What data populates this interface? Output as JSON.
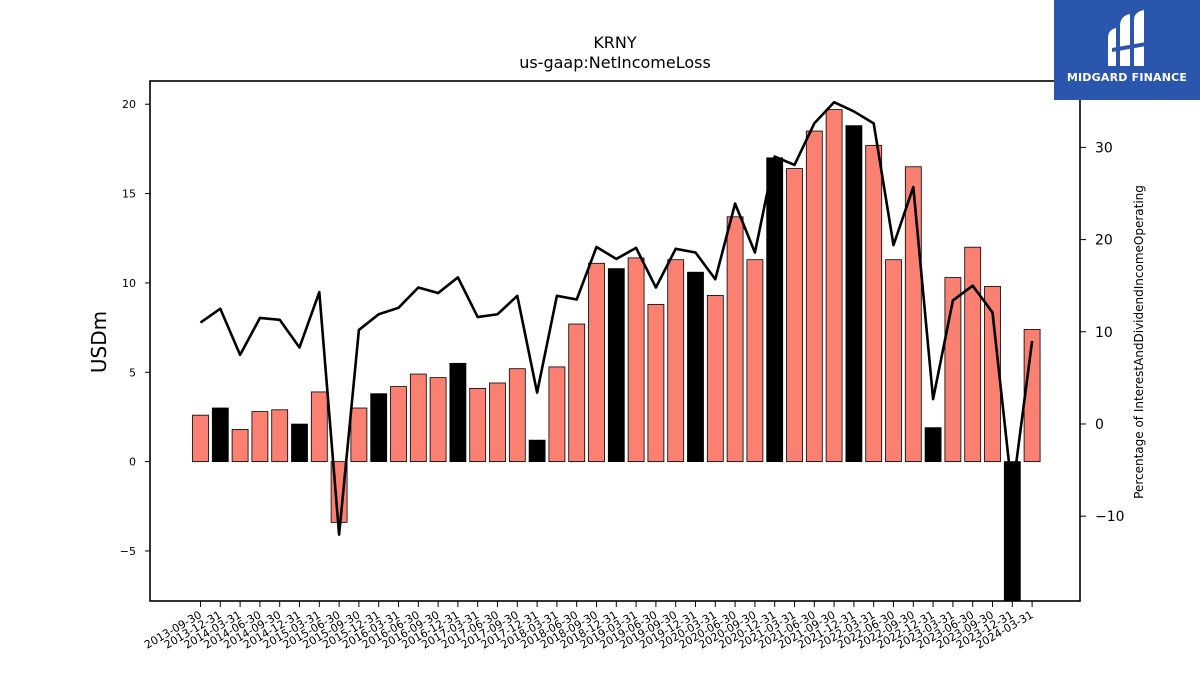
{
  "logo": {
    "text": "MIDGARD FINANCE"
  },
  "chart_data": {
    "type": "bar",
    "title": "KRNY",
    "subtitle": "us-gaap:NetIncomeLoss",
    "ylabel": "USDm",
    "y2label": "Percentage of InterestAndDividendIncomeOperating",
    "ylim": [
      -7.8,
      21.3
    ],
    "y2lim": [
      -19.2,
      37.2
    ],
    "yticks": [
      -5,
      0,
      5,
      10,
      15,
      20
    ],
    "yticklabels": [
      "−5",
      "0",
      "5",
      "10",
      "15",
      "20"
    ],
    "y2ticks": [
      -10,
      0,
      10,
      20,
      30
    ],
    "y2ticklabels": [
      "−10",
      "0",
      "10",
      "20",
      "30"
    ],
    "colors": {
      "bar_default": "#fa8072",
      "bar_q4": "#000000",
      "line": "#000000"
    },
    "categories": [
      "2013-09-30",
      "2013-12-31",
      "2014-03-31",
      "2014-06-30",
      "2014-09-30",
      "2014-12-31",
      "2015-03-31",
      "2015-06-30",
      "2015-09-30",
      "2015-12-31",
      "2016-03-31",
      "2016-06-30",
      "2016-09-30",
      "2016-12-31",
      "2017-03-31",
      "2017-06-30",
      "2017-09-30",
      "2017-12-31",
      "2018-03-31",
      "2018-06-30",
      "2018-09-30",
      "2018-12-31",
      "2019-03-31",
      "2019-06-30",
      "2019-09-30",
      "2019-12-31",
      "2020-03-31",
      "2020-06-30",
      "2020-09-30",
      "2020-12-31",
      "2021-03-31",
      "2021-06-30",
      "2021-09-30",
      "2021-12-31",
      "2022-03-31",
      "2022-06-30",
      "2022-09-30",
      "2022-12-31",
      "2023-03-31",
      "2023-06-30",
      "2023-09-30",
      "2023-12-31",
      "2024-03-31"
    ],
    "series": [
      {
        "axis": "left",
        "kind": "bar",
        "values": [
          2.6,
          3.0,
          1.8,
          2.8,
          2.9,
          2.1,
          3.9,
          -3.4,
          3.0,
          3.8,
          4.2,
          4.9,
          4.7,
          5.5,
          4.1,
          4.4,
          5.2,
          1.2,
          5.3,
          7.7,
          11.1,
          10.8,
          11.4,
          8.8,
          11.3,
          10.6,
          9.3,
          13.7,
          11.3,
          17.0,
          16.4,
          18.5,
          19.7,
          18.8,
          17.7,
          11.3,
          16.5,
          1.9,
          10.3,
          12.0,
          9.8,
          -7.8,
          7.4
        ],
        "highlight": [
          false,
          true,
          false,
          false,
          false,
          true,
          false,
          false,
          false,
          true,
          false,
          false,
          false,
          true,
          false,
          false,
          false,
          true,
          false,
          false,
          false,
          true,
          false,
          false,
          false,
          true,
          false,
          false,
          false,
          true,
          false,
          false,
          false,
          true,
          false,
          false,
          false,
          true,
          false,
          false,
          false,
          true,
          false
        ]
      },
      {
        "axis": "right",
        "kind": "line",
        "values": [
          11,
          12.5,
          7.5,
          11.5,
          11.3,
          8.3,
          14.3,
          -12,
          10.2,
          11.9,
          12.6,
          14.8,
          14.2,
          15.9,
          11.6,
          11.9,
          13.9,
          3.4,
          13.9,
          13.5,
          19.2,
          17.9,
          19.1,
          14.8,
          19,
          18.6,
          15.7,
          23.9,
          18.6,
          29,
          28.1,
          32.6,
          34.9,
          33.9,
          32.6,
          19.4,
          25.7,
          2.7,
          13.4,
          15,
          12.1,
          -7.5,
          9
        ]
      }
    ]
  }
}
